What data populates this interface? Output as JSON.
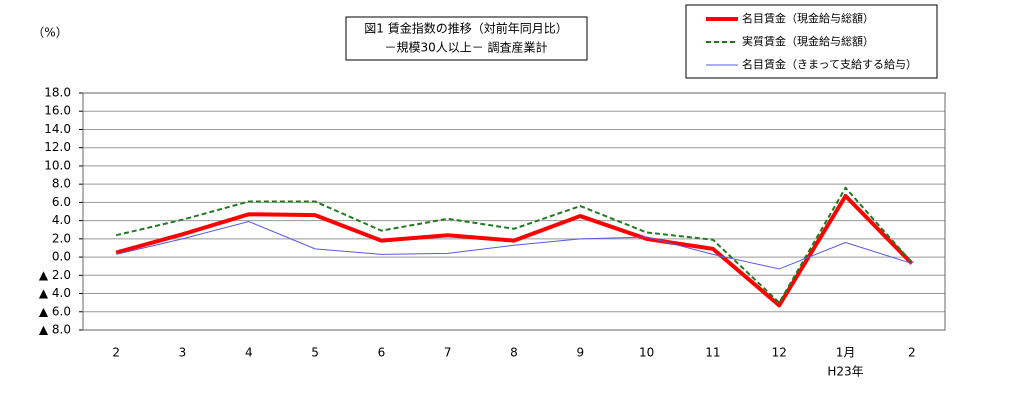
{
  "chart_data": {
    "type": "line",
    "title": "図1 賃金指数の推移（対前年同月比）",
    "subtitle": "－規模30人以上－ 調査産業計",
    "y_label": "（%）",
    "annotation": "H23年",
    "categories": [
      "2",
      "3",
      "4",
      "5",
      "6",
      "7",
      "8",
      "9",
      "10",
      "11",
      "12",
      "1月",
      "2"
    ],
    "series": [
      {
        "name": "名目賃金（現金給与総額）",
        "color": "#ff0000",
        "dashed": false,
        "values": [
          0.5,
          2.5,
          4.7,
          4.6,
          1.8,
          2.4,
          1.8,
          4.5,
          2.0,
          0.9,
          -5.3,
          6.7,
          -0.7
        ]
      },
      {
        "name": "実質賃金（現金給与総額）",
        "color": "#207a20",
        "dashed": true,
        "values": [
          2.4,
          4.1,
          6.1,
          6.1,
          2.9,
          4.2,
          3.1,
          5.6,
          2.7,
          1.9,
          -5.0,
          7.6,
          -0.6
        ]
      },
      {
        "name": "名目賃金（きまって支給する給与）",
        "color": "#5a5ae0",
        "dashed": false,
        "values": [
          0.3,
          2.0,
          3.9,
          0.9,
          0.3,
          0.4,
          1.3,
          2.0,
          2.2,
          0.3,
          -1.3,
          1.6,
          -0.7
        ]
      }
    ],
    "ylim": [
      -8,
      18
    ],
    "yticks": [
      {
        "value": 18,
        "label": "18.0"
      },
      {
        "value": 16,
        "label": "16.0"
      },
      {
        "value": 14,
        "label": "14.0"
      },
      {
        "value": 12,
        "label": "12.0"
      },
      {
        "value": 10,
        "label": "10.0"
      },
      {
        "value": 8,
        "label": "8.0"
      },
      {
        "value": 6,
        "label": "6.0"
      },
      {
        "value": 4,
        "label": "4.0"
      },
      {
        "value": 2,
        "label": "2.0"
      },
      {
        "value": 0,
        "label": "0.0"
      },
      {
        "value": -2,
        "label": "▲ 2.0"
      },
      {
        "value": -4,
        "label": "▲ 4.0"
      },
      {
        "value": -6,
        "label": "▲ 6.0"
      },
      {
        "value": -8,
        "label": "▲ 8.0"
      }
    ],
    "grid": true
  }
}
